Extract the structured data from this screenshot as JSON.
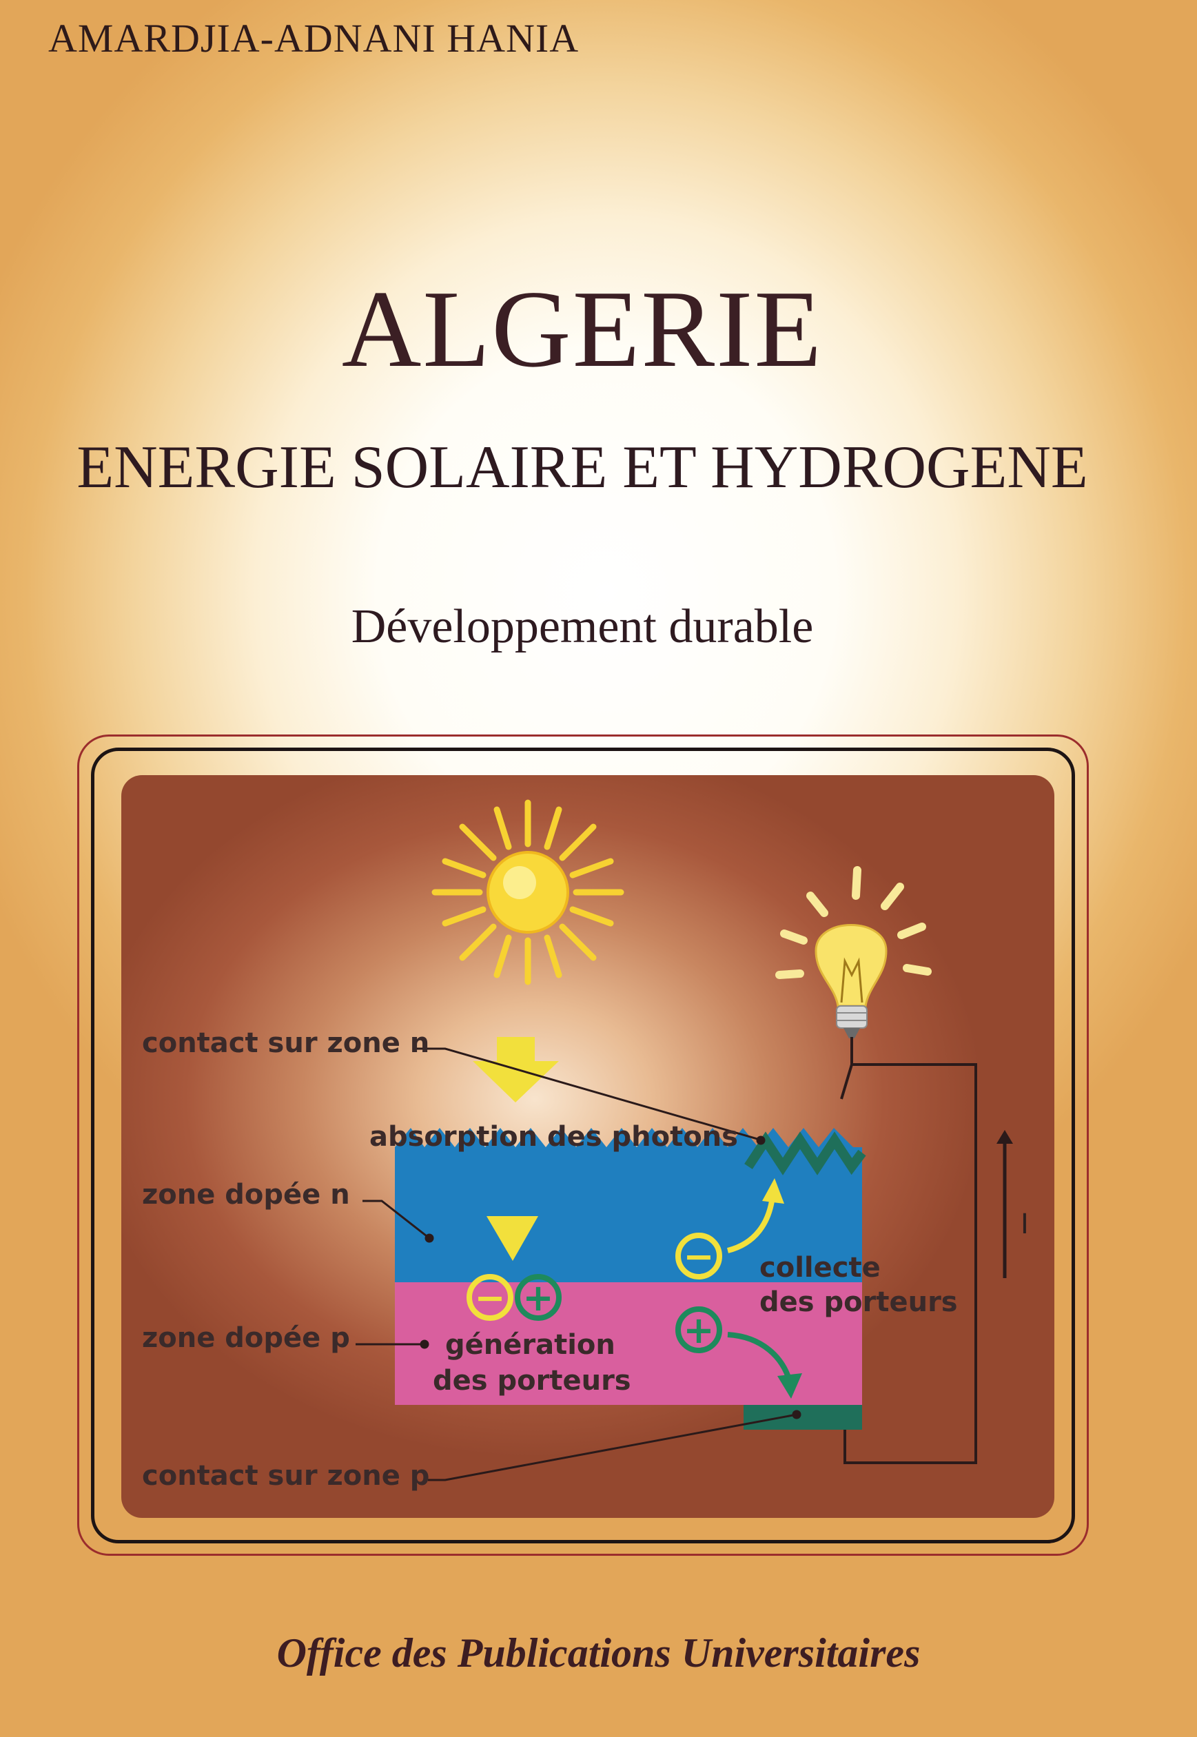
{
  "cover": {
    "author": "AMARDJIA-ADNANI HANIA",
    "title": "ALGERIE",
    "subtitle": "ENERGIE SOLAIRE ET HYDROGENE",
    "tagline": "Développement durable",
    "publisher": "Office des Publications Universitaires"
  },
  "diagram": {
    "labels": {
      "contact_n": "contact sur zone n",
      "absorption": "absorption des photons",
      "zone_n": "zone dopée n",
      "zone_p": "zone dopée p",
      "generation_1": "génération",
      "generation_2": "des porteurs",
      "collecte_1": "collecte",
      "collecte_2": "des porteurs",
      "contact_p": "contact sur zone p",
      "current": "I"
    },
    "symbols": {
      "minus": "−",
      "plus": "+"
    },
    "colors": {
      "n_zone": "#1f7fbf",
      "p_zone": "#d95f9e",
      "contact": "#1f6f5a",
      "sun": "#f7d232",
      "carrier_minus": "#f2e03c",
      "carrier_plus": "#1e8a5c"
    },
    "icons": [
      "sun-icon",
      "light-bulb-icon",
      "arrow-down-icon",
      "current-arrow-icon"
    ]
  }
}
